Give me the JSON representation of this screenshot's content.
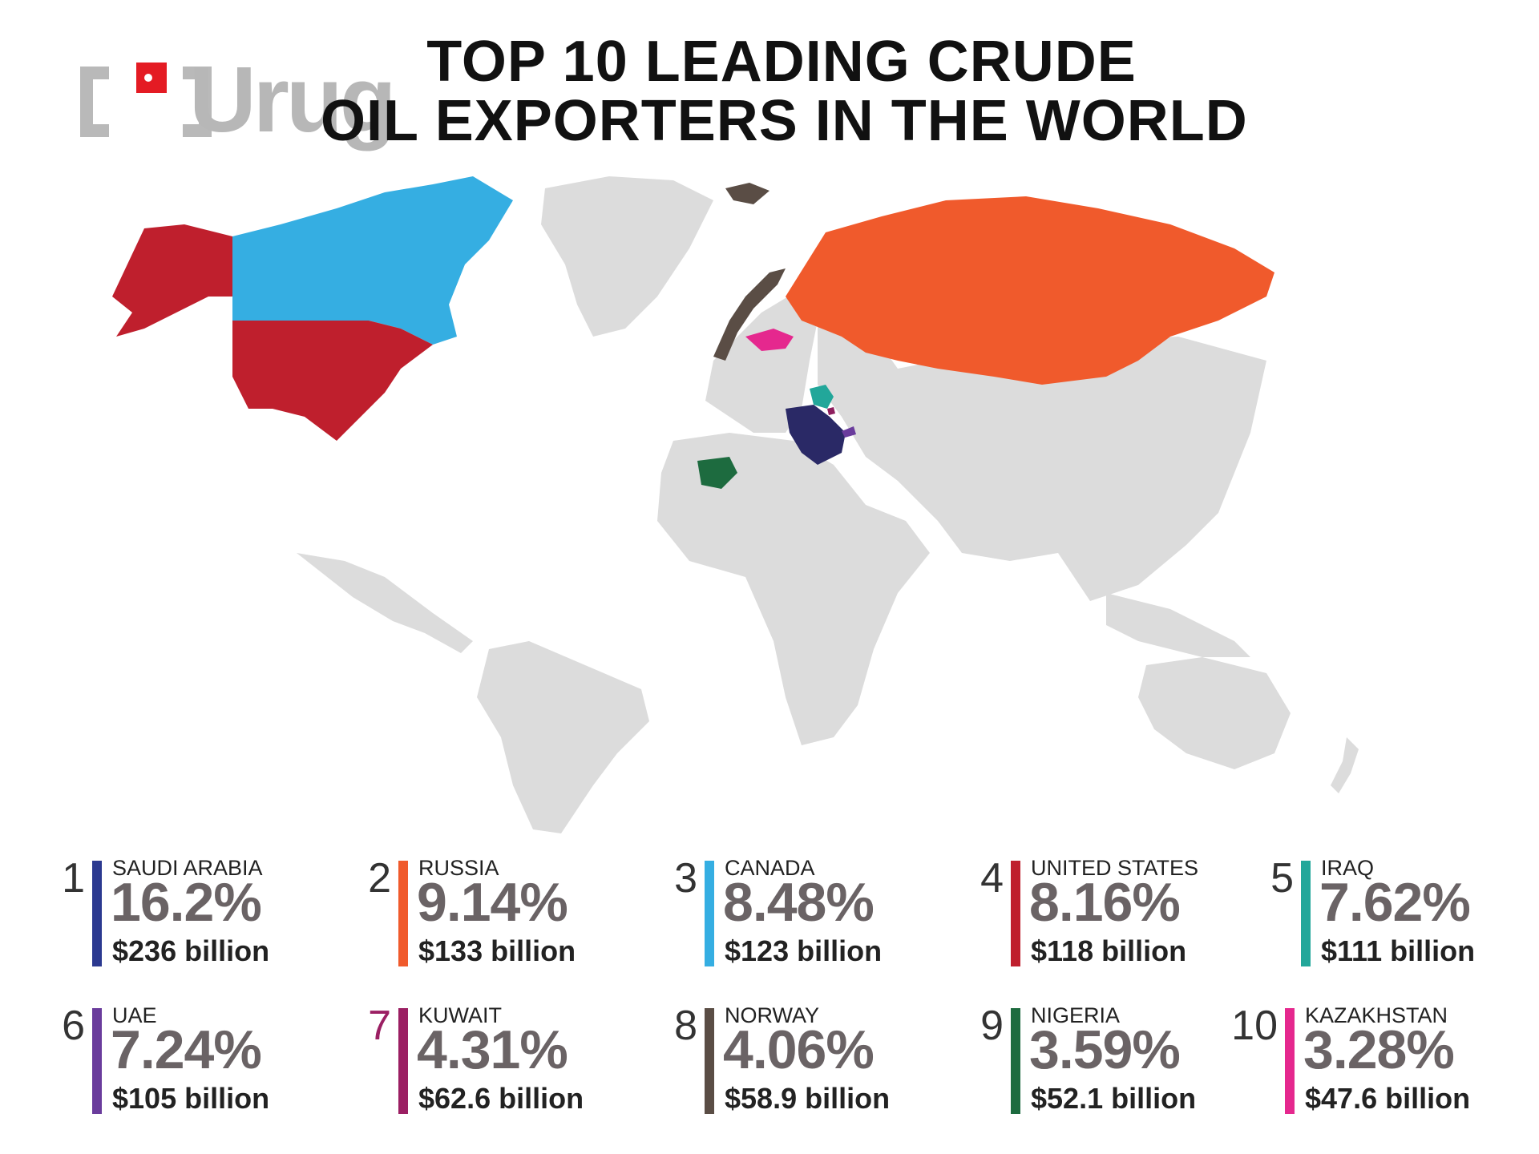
{
  "logo": {
    "text": "Urug"
  },
  "title": {
    "line1": "TOP 10 LEADING CRUDE",
    "line2": "OIL EXPORTERS IN THE WORLD"
  },
  "map": {
    "land_color": "#dcdcdc",
    "highlights": [
      {
        "country": "SAUDI ARABIA",
        "color": "#2a2966"
      },
      {
        "country": "RUSSIA",
        "color": "#f05a2c"
      },
      {
        "country": "CANADA",
        "color": "#35aee2"
      },
      {
        "country": "UNITED STATES",
        "color": "#bf1f2d"
      },
      {
        "country": "IRAQ",
        "color": "#22a79a"
      },
      {
        "country": "UAE",
        "color": "#6a3c9c"
      },
      {
        "country": "KUWAIT",
        "color": "#8e1f5e"
      },
      {
        "country": "NORWAY",
        "color": "#5a4d45"
      },
      {
        "country": "NIGERIA",
        "color": "#1d6b3f"
      },
      {
        "country": "KAZAKHSTAN",
        "color": "#e5288e"
      }
    ]
  },
  "rankings": [
    {
      "rank": "1",
      "country": "SAUDI ARABIA",
      "percent": "16.2%",
      "value": "$236 billion",
      "color": "#2b3990"
    },
    {
      "rank": "2",
      "country": "RUSSIA",
      "percent": "9.14%",
      "value": "$133 billion",
      "color": "#f05a2c"
    },
    {
      "rank": "3",
      "country": "CANADA",
      "percent": "8.48%",
      "value": "$123 billion",
      "color": "#35aee2"
    },
    {
      "rank": "4",
      "country": "UNITED STATES",
      "percent": "8.16%",
      "value": "$118 billion",
      "color": "#bf1f2d"
    },
    {
      "rank": "5",
      "country": "IRAQ",
      "percent": "7.62%",
      "value": "$111 billion",
      "color": "#22a79a"
    },
    {
      "rank": "6",
      "country": "UAE",
      "percent": "7.24%",
      "value": "$105 billion",
      "color": "#6a3c9c"
    },
    {
      "rank": "7",
      "country": "KUWAIT",
      "percent": "4.31%",
      "value": "$62.6 billion",
      "color": "#9b1f63"
    },
    {
      "rank": "8",
      "country": "NORWAY",
      "percent": "4.06%",
      "value": "$58.9 billion",
      "color": "#5a4d45"
    },
    {
      "rank": "9",
      "country": "NIGERIA",
      "percent": "3.59%",
      "value": "$52.1 billion",
      "color": "#1d6b3f"
    },
    {
      "rank": "10",
      "country": "KAZAKHSTAN",
      "percent": "3.28%",
      "value": "$47.6 billion",
      "color": "#e5288e"
    }
  ]
}
